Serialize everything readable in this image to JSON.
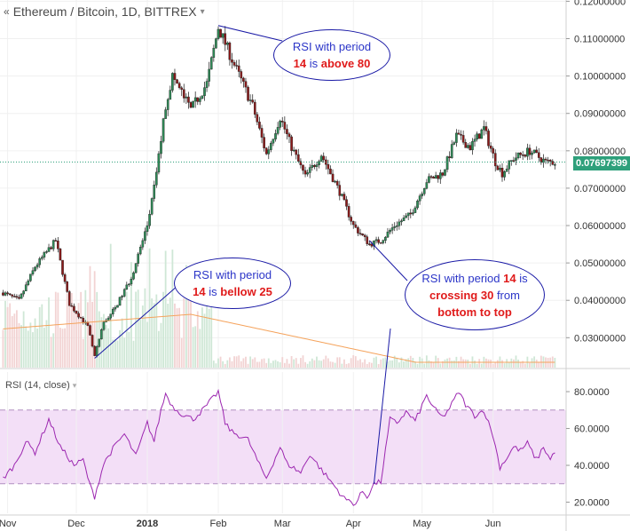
{
  "header": {
    "title": "Ethereum / Bitcoin, 1D, BITTREX",
    "collapse_icon": "double-chevron-left",
    "caret_icon": "caret-down"
  },
  "rsi_panel": {
    "label": "RSI (14, close)",
    "upper_band": 70,
    "lower_band": 30
  },
  "last_price": "0.07697399",
  "colors": {
    "up": "#26a69a",
    "down": "#ef5350",
    "candle_up": "#2e8b57",
    "candle_down": "#8b1a1a",
    "rsi_line": "#9c27b0",
    "rsi_band_fill": "#f3dff7",
    "volume_ma": "#f5a35c",
    "callout_border": "#1a1aa6",
    "callout_text": "#2b35c8",
    "callout_highlight": "#e01b1b",
    "price_tag": "#2ea07b"
  },
  "callouts": [
    {
      "id": "top",
      "line1": "RSI with period",
      "num": "14",
      "rest": "is",
      "highlight": "above 80"
    },
    {
      "id": "bottom-left",
      "line1": "RSI with period",
      "num": "14",
      "rest": "is",
      "highlight": "bellow 25"
    },
    {
      "id": "right",
      "line1a": "RSI with period",
      "num": "14",
      "line1b": "is",
      "highlight1": "crossing 30",
      "mid": "from",
      "highlight2": "bottom to top"
    }
  ],
  "chart_data": [
    {
      "type": "candlestick",
      "title": "Ethereum / Bitcoin, 1D, BITTREX",
      "x_ticks": [
        "Nov",
        "Dec",
        "2018",
        "Feb",
        "Mar",
        "Apr",
        "May",
        "Jun"
      ],
      "y_ticks": [
        "0.12000000",
        "0.11000000",
        "0.10000000",
        "0.09000000",
        "0.08000000",
        "0.07000000",
        "0.06000000",
        "0.05000000",
        "0.04000000",
        "0.03000000"
      ],
      "ylim": [
        0.022,
        0.12
      ],
      "anchors": [
        [
          "2017-10-30",
          0.042
        ],
        [
          "2017-11-06",
          0.04
        ],
        [
          "2017-11-13",
          0.049
        ],
        [
          "2017-11-22",
          0.056
        ],
        [
          "2017-11-28",
          0.039
        ],
        [
          "2017-12-06",
          0.033
        ],
        [
          "2017-12-09",
          0.025
        ],
        [
          "2017-12-13",
          0.034
        ],
        [
          "2017-12-18",
          0.038
        ],
        [
          "2017-12-25",
          0.046
        ],
        [
          "2018-01-01",
          0.06
        ],
        [
          "2018-01-04",
          0.07
        ],
        [
          "2018-01-09",
          0.092
        ],
        [
          "2018-01-12",
          0.1
        ],
        [
          "2018-01-20",
          0.091
        ],
        [
          "2018-01-27",
          0.098
        ],
        [
          "2018-02-01",
          0.113
        ],
        [
          "2018-02-08",
          0.103
        ],
        [
          "2018-02-16",
          0.092
        ],
        [
          "2018-02-22",
          0.079
        ],
        [
          "2018-02-28",
          0.089
        ],
        [
          "2018-03-05",
          0.081
        ],
        [
          "2018-03-11",
          0.073
        ],
        [
          "2018-03-18",
          0.079
        ],
        [
          "2018-03-26",
          0.069
        ],
        [
          "2018-04-01",
          0.06
        ],
        [
          "2018-04-08",
          0.055
        ],
        [
          "2018-04-13",
          0.056
        ],
        [
          "2018-04-19",
          0.06
        ],
        [
          "2018-04-26",
          0.063
        ],
        [
          "2018-05-03",
          0.072
        ],
        [
          "2018-05-10",
          0.074
        ],
        [
          "2018-05-16",
          0.084
        ],
        [
          "2018-05-22",
          0.081
        ],
        [
          "2018-05-28",
          0.086
        ],
        [
          "2018-06-02",
          0.077
        ],
        [
          "2018-06-05",
          0.074
        ],
        [
          "2018-06-10",
          0.078
        ],
        [
          "2018-06-17",
          0.08
        ],
        [
          "2018-06-24",
          0.077
        ],
        [
          "2018-06-28",
          0.077
        ]
      ],
      "volume_ma_note": "orange moving average over volume bars",
      "last_price": 0.07697399
    },
    {
      "type": "line",
      "title": "RSI (14, close)",
      "x_ticks": [
        "Nov",
        "Dec",
        "2018",
        "Feb",
        "Mar",
        "Apr",
        "May",
        "Jun"
      ],
      "y_ticks": [
        "80.0000",
        "60.0000",
        "40.0000",
        "20.0000"
      ],
      "ylim": [
        14,
        84
      ],
      "bands": [
        30,
        70
      ],
      "anchors": [
        [
          "2017-10-30",
          33
        ],
        [
          "2017-11-04",
          40
        ],
        [
          "2017-11-09",
          53
        ],
        [
          "2017-11-13",
          47
        ],
        [
          "2017-11-19",
          65
        ],
        [
          "2017-11-24",
          50
        ],
        [
          "2017-11-30",
          40
        ],
        [
          "2017-12-04",
          43
        ],
        [
          "2017-12-07",
          29
        ],
        [
          "2017-12-09",
          23
        ],
        [
          "2017-12-13",
          41
        ],
        [
          "2017-12-17",
          49
        ],
        [
          "2017-12-22",
          57
        ],
        [
          "2017-12-27",
          45
        ],
        [
          "2018-01-01",
          63
        ],
        [
          "2018-01-04",
          53
        ],
        [
          "2018-01-07",
          70
        ],
        [
          "2018-01-09",
          79
        ],
        [
          "2018-01-12",
          72
        ],
        [
          "2018-01-16",
          68
        ],
        [
          "2018-01-21",
          65
        ],
        [
          "2018-01-26",
          71
        ],
        [
          "2018-02-01",
          80
        ],
        [
          "2018-02-04",
          63
        ],
        [
          "2018-02-07",
          58
        ],
        [
          "2018-02-14",
          54
        ],
        [
          "2018-02-19",
          40
        ],
        [
          "2018-02-22",
          33
        ],
        [
          "2018-02-28",
          50
        ],
        [
          "2018-03-03",
          41
        ],
        [
          "2018-03-09",
          36
        ],
        [
          "2018-03-13",
          46
        ],
        [
          "2018-03-19",
          36
        ],
        [
          "2018-03-23",
          30
        ],
        [
          "2018-03-28",
          22
        ],
        [
          "2018-04-02",
          19
        ],
        [
          "2018-04-05",
          26
        ],
        [
          "2018-04-07",
          23
        ],
        [
          "2018-04-10",
          30
        ],
        [
          "2018-04-13",
          31
        ],
        [
          "2018-04-17",
          65
        ],
        [
          "2018-04-20",
          63
        ],
        [
          "2018-04-24",
          69
        ],
        [
          "2018-04-28",
          64
        ],
        [
          "2018-05-03",
          78
        ],
        [
          "2018-05-06",
          71
        ],
        [
          "2018-05-10",
          66
        ],
        [
          "2018-05-13",
          71
        ],
        [
          "2018-05-17",
          80
        ],
        [
          "2018-05-20",
          73
        ],
        [
          "2018-05-24",
          67
        ],
        [
          "2018-05-28",
          70
        ],
        [
          "2018-06-01",
          56
        ],
        [
          "2018-06-04",
          39
        ],
        [
          "2018-06-07",
          44
        ],
        [
          "2018-06-10",
          50
        ],
        [
          "2018-06-13",
          48
        ],
        [
          "2018-06-16",
          52
        ],
        [
          "2018-06-20",
          43
        ],
        [
          "2018-06-23",
          50
        ],
        [
          "2018-06-26",
          43
        ],
        [
          "2018-06-28",
          48
        ]
      ]
    }
  ]
}
